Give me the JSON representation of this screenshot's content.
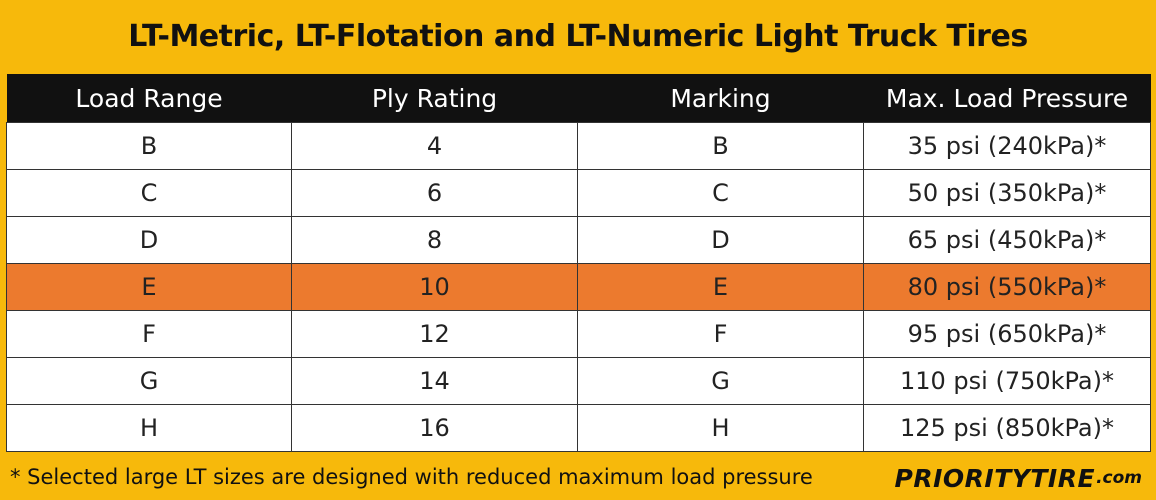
{
  "title": "LT-Metric, LT-Flotation and LT-Numeric Light Truck Tires",
  "table": {
    "headers": [
      "Load Range",
      "Ply Rating",
      "Marking",
      "Max. Load Pressure"
    ],
    "rows": [
      [
        "B",
        "4",
        "B",
        "35 psi (240kPa)*"
      ],
      [
        "C",
        "6",
        "C",
        "50 psi (350kPa)*"
      ],
      [
        "D",
        "8",
        "D",
        "65 psi (450kPa)*"
      ],
      [
        "E",
        "10",
        "E",
        "80 psi (550kPa)*"
      ],
      [
        "F",
        "12",
        "F",
        "95 psi (650kPa)*"
      ],
      [
        "G",
        "14",
        "G",
        "110 psi (750kPa)*"
      ],
      [
        "H",
        "16",
        "H",
        "125 psi (850kPa)*"
      ]
    ],
    "highlighted_row": "E"
  },
  "footnote": "* Selected large LT sizes are designed with reduced maximum load pressure",
  "logo": {
    "part1": "PRIORITY",
    "part2": "TIRE",
    "part3": ".com"
  },
  "colors": {
    "background": "#f7b90b",
    "header": "#111111",
    "highlight": "#ec7a2e"
  }
}
